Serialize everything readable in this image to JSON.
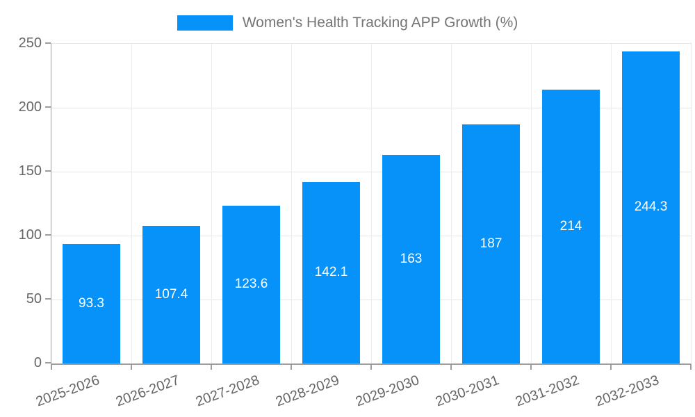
{
  "legend": {
    "label": "Women's Health Tracking APP Growth (%)",
    "swatch_color": "#0692f9"
  },
  "chart_data": {
    "type": "bar",
    "title": "Women's Health Tracking APP Growth (%)",
    "categories": [
      "2025-2026",
      "2026-2027",
      "2027-2028",
      "2028-2029",
      "2029-2030",
      "2030-2031",
      "2031-2032",
      "2032-2033"
    ],
    "values": [
      93.3,
      107.4,
      123.6,
      142.1,
      163,
      187,
      214,
      244.3
    ],
    "value_labels": [
      "93.3",
      "107.4",
      "123.6",
      "142.1",
      "163",
      "187",
      "214",
      "244.3"
    ],
    "xlabel": "",
    "ylabel": "",
    "ylim": [
      0,
      250
    ],
    "yticks": [
      0,
      50,
      100,
      150,
      200,
      250
    ],
    "grid": true,
    "legend_position": "top-center",
    "bar_color": "#0692f9",
    "bar_label_color": "#ffffff",
    "axis_color": "#9e9e9e",
    "grid_color": "#e6e6e6",
    "tick_label_color": "#666666",
    "legend_text_color": "#757575"
  }
}
